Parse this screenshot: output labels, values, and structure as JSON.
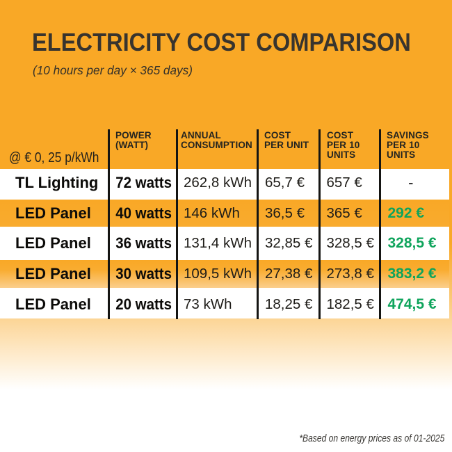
{
  "page": {
    "title": "ELECTRICITY COST COMPARISON",
    "subtitle": "(10 hours per day × 365 days)",
    "footnote": "*Based on energy prices as of 01-2025"
  },
  "colors": {
    "background_orange": "#F9A826",
    "row_white": "#FFFFFF",
    "divider_black": "#151513",
    "savings_green": "#0FA45C",
    "text_dark": "#38342E"
  },
  "table": {
    "rate_note": "@ € 0, 25 p/kWh",
    "headers": {
      "power": "POWER\n(WATT)",
      "consumption": "ANNUAL\nCONSUMPTION",
      "cost_per_unit": "COST\nPER UNIT",
      "cost_per_10": "COST\nPER 10\nUNITS",
      "savings_per_10": "SAVINGS\nPER 10\nUNITS"
    },
    "rows": [
      {
        "product": "TL Lighting",
        "power": "72 watts",
        "consumption": "262,8 kWh",
        "cost_per_unit": "65,7 €",
        "cost_per_10": "657 €",
        "savings_per_10": "-"
      },
      {
        "product": "LED Panel",
        "power": "40 watts",
        "consumption": "146 kWh",
        "cost_per_unit": "36,5 €",
        "cost_per_10": "365 €",
        "savings_per_10": "292 €"
      },
      {
        "product": "LED Panel",
        "power": "36 watts",
        "consumption": "131,4 kWh",
        "cost_per_unit": "32,85 €",
        "cost_per_10": "328,5 €",
        "savings_per_10": "328,5 €"
      },
      {
        "product": "LED Panel",
        "power": "30 watts",
        "consumption": "109,5 kWh",
        "cost_per_unit": "27,38 €",
        "cost_per_10": "273,8 €",
        "savings_per_10": "383,2 €"
      },
      {
        "product": "LED Panel",
        "power": "20 watts",
        "consumption": "73 kWh",
        "cost_per_unit": "18,25 €",
        "cost_per_10": "182,5 €",
        "savings_per_10": "474,5 €"
      }
    ]
  },
  "chart_data": {
    "type": "table",
    "title": "ELECTRICITY COST COMPARISON",
    "subtitle": "(10 hours per day × 365 days)",
    "rate_note": "@ € 0, 25 p/kWh",
    "columns": [
      "",
      "POWER (WATT)",
      "ANNUAL CONSUMPTION",
      "COST PER UNIT",
      "COST PER 10 UNITS",
      "SAVINGS PER 10 UNITS"
    ],
    "rows": [
      [
        "TL Lighting",
        "72 watts",
        "262,8 kWh",
        "65,7 €",
        "657 €",
        "-"
      ],
      [
        "LED Panel",
        "40 watts",
        "146 kWh",
        "36,5 €",
        "365 €",
        "292 €"
      ],
      [
        "LED Panel",
        "36 watts",
        "131,4 kWh",
        "32,85 €",
        "328,5 €",
        "328,5 €"
      ],
      [
        "LED Panel",
        "30 watts",
        "109,5 kWh",
        "27,38 €",
        "273,8 €",
        "383,2 €"
      ],
      [
        "LED Panel",
        "20 watts",
        "73 kWh",
        "18,25 €",
        "182,5 €",
        "474,5 €"
      ]
    ],
    "footnote": "*Based on energy prices as of 01-2025"
  }
}
